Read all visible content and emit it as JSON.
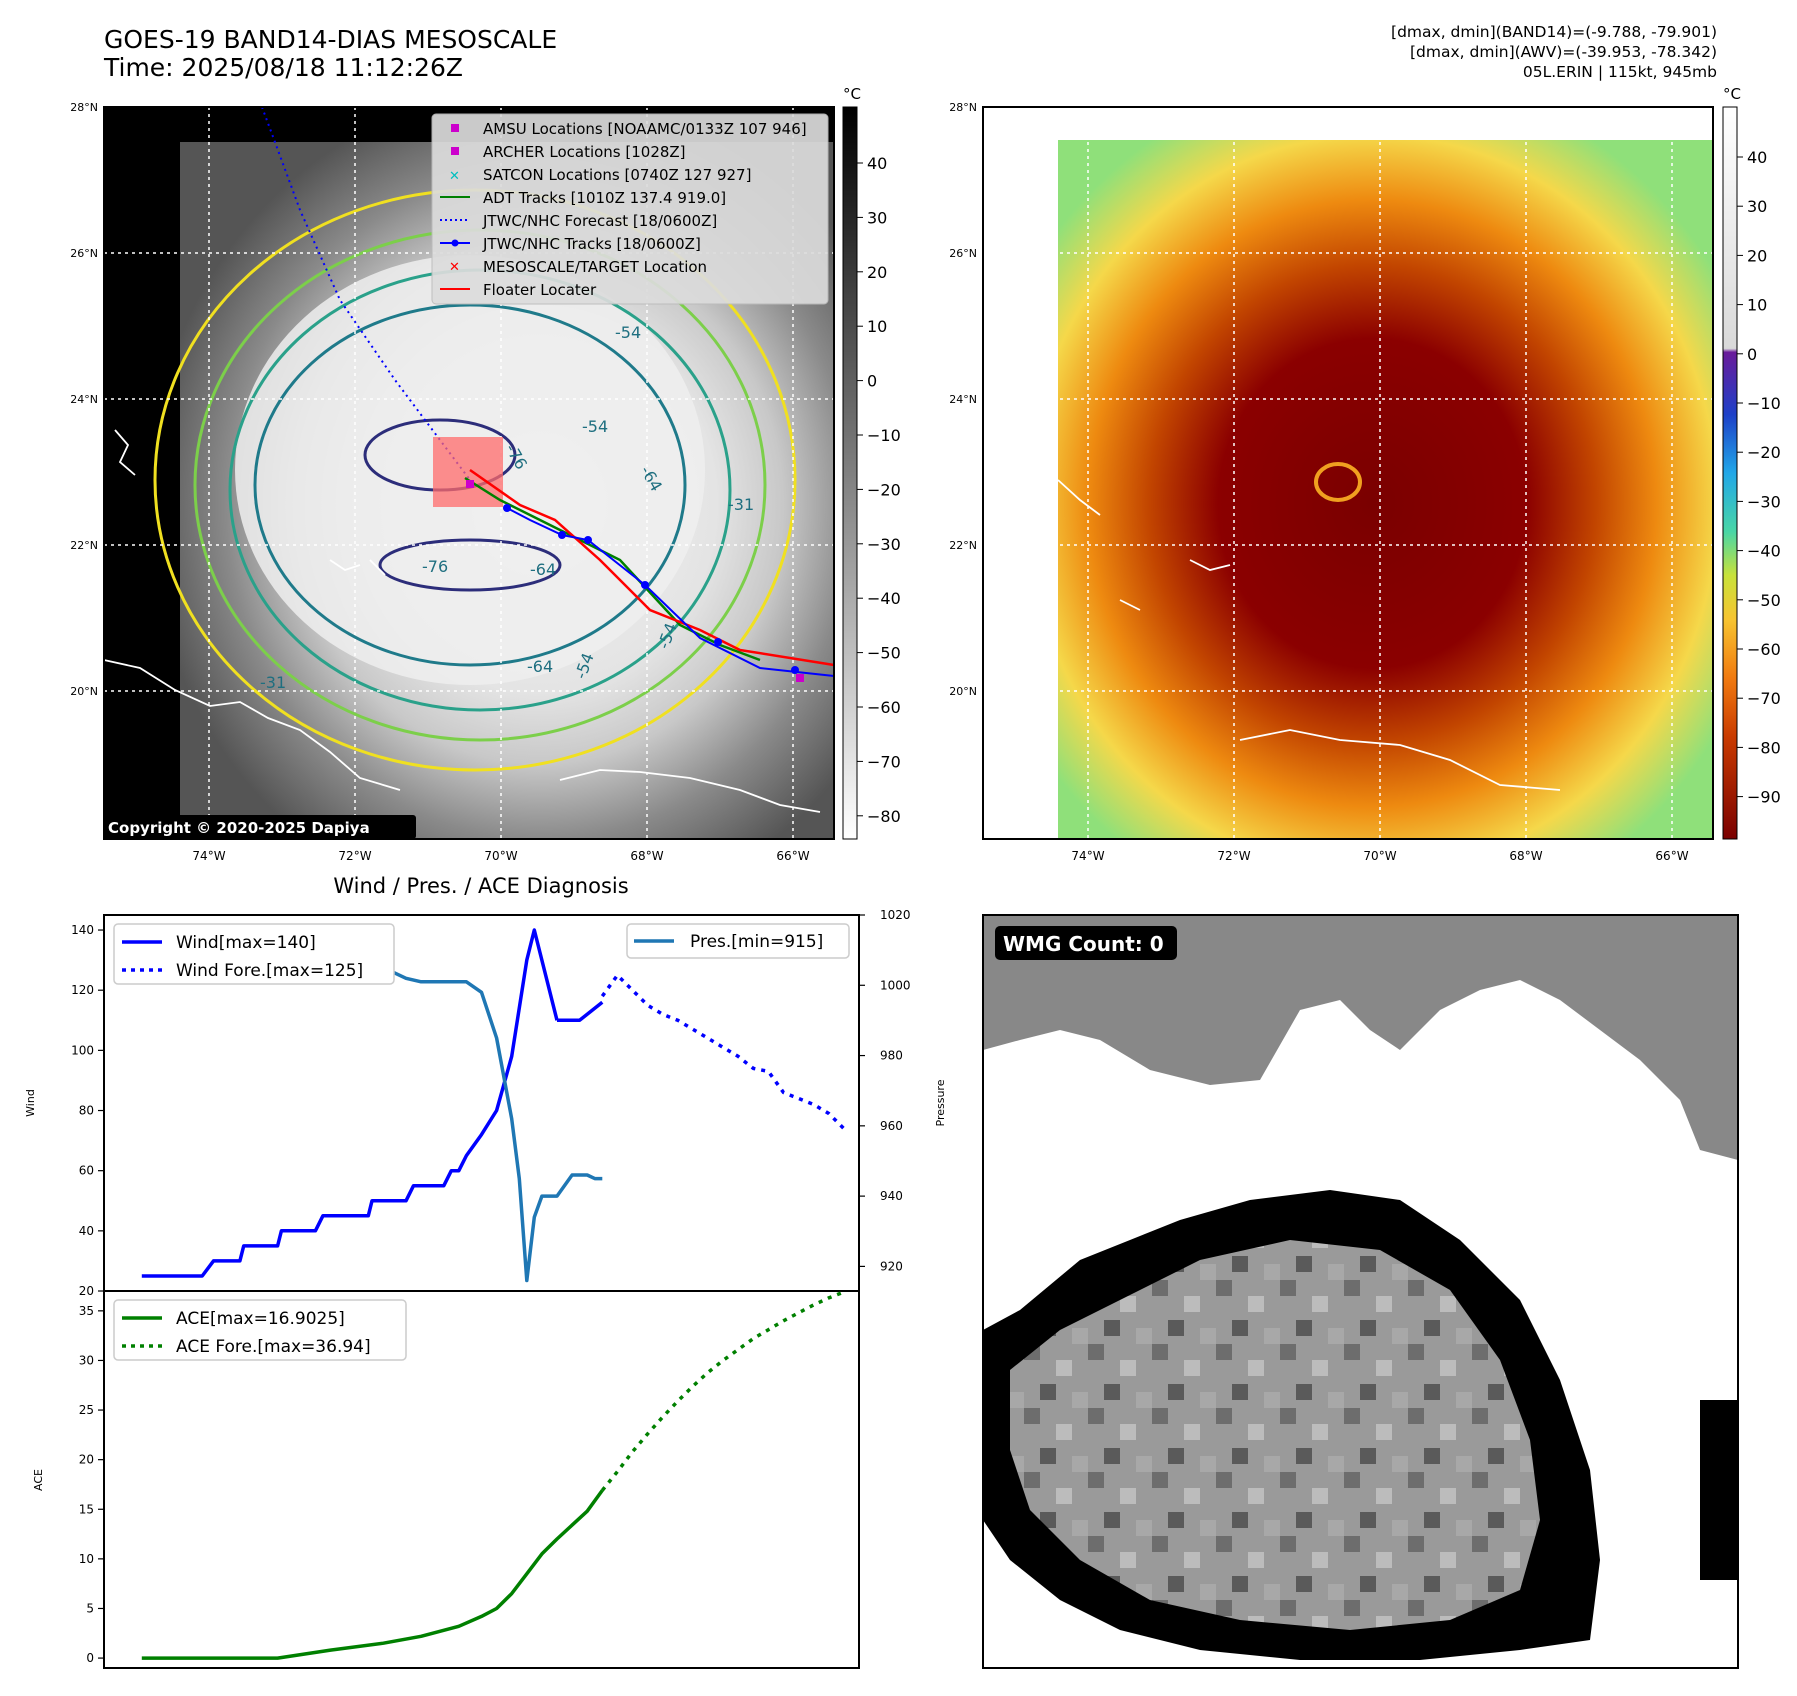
{
  "header": {
    "title": "GOES-19 BAND14-DIAS MESOSCALE",
    "time": "Time: 2025/08/18 11:12:26Z",
    "info_lines": [
      "[dmax, dmin](BAND14)=(-9.788, -79.901)",
      "[dmax, dmin](AWV)=(-39.953, -78.342)",
      "05L.ERIN | 115kt, 945mb"
    ]
  },
  "map_axes": {
    "lat_ticks": [
      "28°N",
      "26°N",
      "24°N",
      "22°N",
      "20°N"
    ],
    "lon_ticks": [
      "74°W",
      "72°W",
      "70°W",
      "68°W",
      "66°W"
    ],
    "colorbar_unit": "°C",
    "ir_colorbar_ticks": [
      "40",
      "30",
      "20",
      "10",
      "0",
      "−10",
      "−20",
      "−30",
      "−40",
      "−50",
      "−60",
      "−70",
      "−80"
    ],
    "awv_colorbar_ticks": [
      "40",
      "30",
      "20",
      "10",
      "0",
      "−10",
      "−20",
      "−30",
      "−40",
      "−50",
      "−60",
      "−70",
      "−80",
      "−90"
    ],
    "copyright": "Copyright © 2020-2025 Dapiya",
    "contour_labels": [
      "-54",
      "-76",
      "-64",
      "-31",
      "-54",
      "-76",
      "-64",
      "-64",
      "-54",
      "-31",
      "-54"
    ]
  },
  "map_legend": [
    {
      "label": "AMSU Locations [NOAAMC/0133Z 107 946]",
      "color": "#cc00cc",
      "marker": "square"
    },
    {
      "label": "ARCHER Locations [1028Z]",
      "color": "#cc00cc",
      "marker": "square"
    },
    {
      "label": "SATCON Locations [0740Z 127 927]",
      "color": "#00bfbf",
      "marker": "x"
    },
    {
      "label": "ADT Tracks [1010Z 137.4 919.0]",
      "color": "#008000",
      "marker": "line"
    },
    {
      "label": "JTWC/NHC Forecast [18/0600Z]",
      "color": "#0000ff",
      "marker": "dotted"
    },
    {
      "label": "JTWC/NHC Tracks [18/0600Z]",
      "color": "#0000ff",
      "marker": "line-dot"
    },
    {
      "label": "MESOSCALE/TARGET Location",
      "color": "#ff0000",
      "marker": "x"
    },
    {
      "label": "Floater Locater",
      "color": "#ff0000",
      "marker": "line"
    }
  ],
  "wmg": {
    "label": "WMG Count: 0"
  },
  "chart_data": [
    {
      "type": "line",
      "title": "Wind / Pres. / ACE Diagnosis",
      "ylabel": "Wind",
      "ylim": [
        20,
        145
      ],
      "yticks": [
        20,
        40,
        60,
        80,
        100,
        120,
        140
      ],
      "ylabel_right": "Pressure",
      "ylim_right": [
        913,
        1020
      ],
      "yticks_right": [
        920,
        940,
        960,
        980,
        1000,
        1020
      ],
      "xlim": [
        0,
        100
      ],
      "series": [
        {
          "name": "Wind[max=140]",
          "axis": "left",
          "color": "#0000ff",
          "style": "solid",
          "x": [
            5,
            13,
            14.5,
            18,
            18.5,
            23,
            23.5,
            28,
            29,
            35,
            35.5,
            40,
            41,
            45,
            46,
            47,
            48,
            50,
            52,
            54,
            56,
            57,
            60
          ],
          "y": [
            25,
            25,
            30,
            30,
            35,
            35,
            40,
            40,
            45,
            45,
            50,
            50,
            55,
            55,
            60,
            60,
            65,
            72,
            80,
            98,
            130,
            140,
            110
          ]
        },
        {
          "name": "Wind[max=140]",
          "axis": "left",
          "color": "#0000ff",
          "style": "solid",
          "x": [
            60,
            63,
            66
          ],
          "y": [
            110,
            110,
            116
          ]
        },
        {
          "name": "Wind Fore.[max=125]",
          "axis": "left",
          "color": "#0000ff",
          "style": "dotted",
          "x": [
            66,
            68,
            70,
            72,
            74,
            76,
            78,
            80,
            82,
            84,
            86,
            88,
            90,
            92,
            94,
            96,
            98
          ],
          "y": [
            118,
            125,
            120,
            115,
            112,
            110,
            107,
            104,
            101,
            98,
            94,
            93,
            86,
            84,
            82,
            79,
            74
          ]
        },
        {
          "name": "Pres.[min=915]",
          "axis": "right",
          "color": "#1f77b4",
          "style": "solid",
          "x": [
            5,
            6,
            7,
            8,
            10,
            12,
            14,
            16,
            18,
            20,
            22,
            24,
            26,
            28,
            30,
            32,
            34,
            36,
            38,
            40,
            42,
            44,
            46,
            48,
            50,
            52,
            54,
            55,
            56,
            57,
            58,
            60,
            62,
            63,
            64,
            65,
            66
          ],
          "y": [
            1015,
            1015,
            1010,
            1009,
            1008,
            1008,
            1008,
            1008,
            1008,
            1007,
            1006,
            1006,
            1005,
            1005,
            1005,
            1004,
            1004,
            1004,
            1004,
            1002,
            1001,
            1001,
            1001,
            1001,
            998,
            985,
            962,
            945,
            916,
            934,
            940,
            940,
            946,
            946,
            946,
            945,
            945
          ]
        }
      ],
      "legend": [
        {
          "label": "Wind[max=140]",
          "color": "#0000ff",
          "style": "solid"
        },
        {
          "label": "Wind Fore.[max=125]",
          "color": "#0000ff",
          "style": "dotted"
        },
        {
          "label": "Pres.[min=915]",
          "color": "#1f77b4",
          "style": "solid"
        }
      ]
    },
    {
      "type": "line",
      "ylabel": "ACE",
      "ylim": [
        -1,
        37
      ],
      "yticks": [
        0,
        5,
        10,
        15,
        20,
        25,
        30,
        35
      ],
      "xlim": [
        0,
        100
      ],
      "series": [
        {
          "name": "ACE[max=16.9025]",
          "color": "#008000",
          "style": "solid",
          "x": [
            5,
            23,
            30,
            37,
            42,
            47,
            50,
            52,
            54,
            56,
            58,
            60,
            62,
            64,
            66
          ],
          "y": [
            0,
            0,
            0.8,
            1.5,
            2.2,
            3.2,
            4.2,
            5,
            6.5,
            8.5,
            10.5,
            12,
            13.4,
            14.8,
            16.9
          ]
        },
        {
          "name": "ACE Fore.[max=36.94]",
          "color": "#008000",
          "style": "dotted",
          "x": [
            66,
            68,
            70,
            72,
            74,
            76,
            78,
            80,
            82,
            84,
            86,
            88,
            90,
            92,
            94,
            96,
            98
          ],
          "y": [
            16.9,
            18.8,
            20.8,
            22.6,
            24.3,
            25.9,
            27.4,
            28.8,
            30,
            31.1,
            32.2,
            33.1,
            34,
            34.8,
            35.6,
            36.3,
            36.9
          ]
        }
      ],
      "legend": [
        {
          "label": "ACE[max=16.9025]",
          "color": "#008000",
          "style": "solid"
        },
        {
          "label": "ACE Fore.[max=36.94]",
          "color": "#008000",
          "style": "dotted"
        }
      ]
    }
  ]
}
